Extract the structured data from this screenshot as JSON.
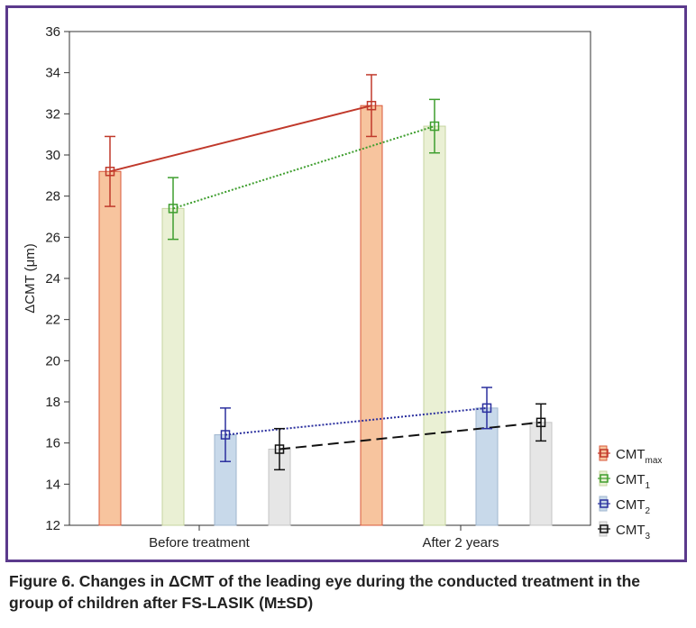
{
  "chart_data": {
    "type": "bar",
    "ylabel": "ΔCMT (μm)",
    "ylim": [
      12,
      36
    ],
    "yticks": [
      12,
      14,
      16,
      18,
      20,
      22,
      24,
      26,
      28,
      30,
      32,
      34,
      36
    ],
    "categories": [
      "Before treatment",
      "After 2 years"
    ],
    "grid": false,
    "legend_position": "right",
    "series": [
      {
        "name": "CMT",
        "sub": "max",
        "color": "#c0392b",
        "bar_color": "#f7c49e",
        "bar_border": "#d9583b",
        "line_style": "solid",
        "values": [
          29.2,
          32.4
        ],
        "errors": [
          1.7,
          1.5
        ]
      },
      {
        "name": "CMT",
        "sub": "1",
        "color": "#3e9e2e",
        "bar_color": "#eaf0d4",
        "bar_border": "#c6d59f",
        "line_style": "dotted",
        "values": [
          27.4,
          31.4
        ],
        "errors": [
          1.5,
          1.3
        ]
      },
      {
        "name": "CMT",
        "sub": "2",
        "color": "#2a2f9e",
        "bar_color": "#c8d9ea",
        "bar_border": "#9fb6cf",
        "line_style": "dotted",
        "values": [
          16.4,
          17.7
        ],
        "errors": [
          1.3,
          1.0
        ]
      },
      {
        "name": "CMT",
        "sub": "3",
        "color": "#111111",
        "bar_color": "#e6e6e6",
        "bar_border": "#c4c4c4",
        "line_style": "dashed",
        "values": [
          15.7,
          17.0
        ],
        "errors": [
          1.0,
          0.9
        ]
      }
    ]
  },
  "caption": "Figure 6. Changes in ΔCMT of the leading eye during the conducted treatment in the group of children after FS-LASIK (M±SD)"
}
